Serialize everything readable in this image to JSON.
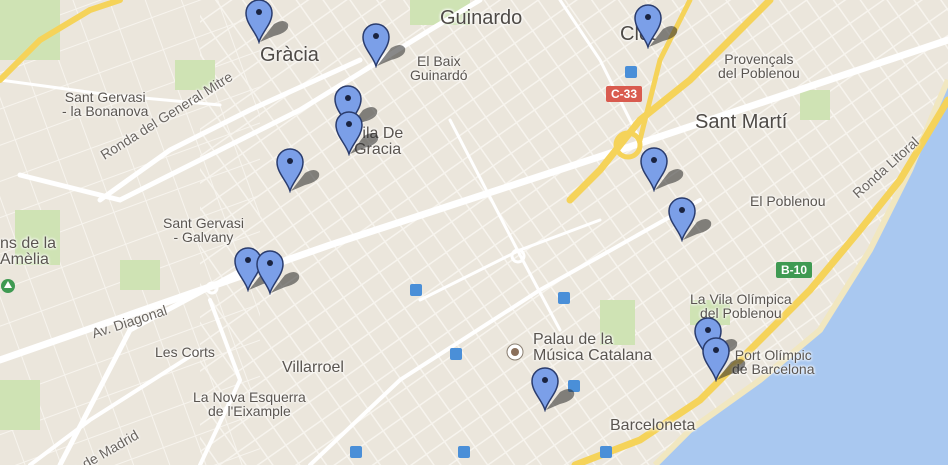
{
  "map": {
    "labels": {
      "guinardo": "Guinardo",
      "gracia": "Gràcia",
      "el_baix_guinardo": "El Baix\nGuinardó",
      "clot": "Clot",
      "provencals": "Provençals\ndel Poblenou",
      "sant_gervasi_bonanova": "Sant Gervasi\n- la Bonanova",
      "vila_de_gracia": "Vila De\nGracia",
      "sant_marti": "Sant Martí",
      "el_poblenou": "El Poblenou",
      "sant_gervasi_galvany": "Sant Gervasi\n- Galvany",
      "amelia": "ns de la\nAmèlia",
      "les_corts": "Les Corts",
      "villarroel": "Villarroel",
      "palau": "Palau de la\nMúsica Catalana",
      "vila_olimpica": "La Vila Olímpica\ndel Poblenou",
      "port_olimpic": "Port Olímpic\nde Barcelona",
      "nova_esquerra": "La Nova Esquerra\nde l'Eixample",
      "barceloneta": "Barceloneta"
    },
    "roads": {
      "ronda_general_mitre": "Ronda del General Mitre",
      "av_diagonal": "Av. Diagonal",
      "av_madrid": "Av. de Madrid",
      "ronda_litoral": "Ronda Litoral"
    },
    "shields": {
      "c33": "C-33",
      "b10": "B-10"
    },
    "colors": {
      "land": "#ebe6dc",
      "water": "#a9c8f0",
      "park": "#cfe3b4",
      "highway": "#f5d35a",
      "pin": "#7b9fe8",
      "c33_shield": "#d95b4f",
      "b10_shield": "#3f9a52"
    },
    "pin_icon": "map-marker-icon",
    "metro_icon": "metro-station-icon"
  }
}
